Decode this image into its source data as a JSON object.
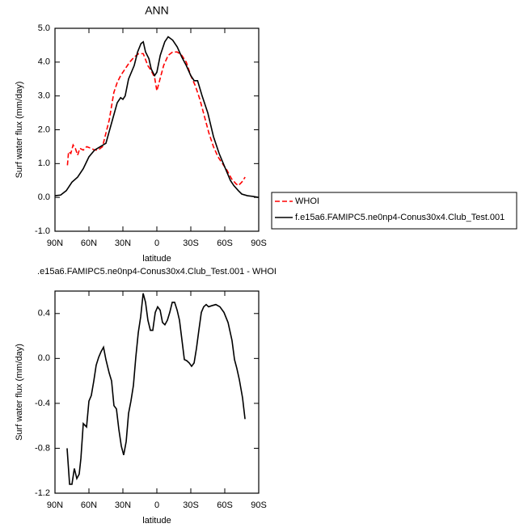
{
  "chart_data": [
    {
      "type": "line",
      "title": "ANN",
      "xlabel": "latitude",
      "ylabel": "Surf water flux (mm/day)",
      "xlim": [
        90,
        -90
      ],
      "ylim": [
        -1,
        5
      ],
      "xticks": [
        {
          "value": 90,
          "label": "90N"
        },
        {
          "value": 60,
          "label": "60N"
        },
        {
          "value": 30,
          "label": "30N"
        },
        {
          "value": 0,
          "label": "0"
        },
        {
          "value": -30,
          "label": "30S"
        },
        {
          "value": -60,
          "label": "60S"
        },
        {
          "value": -90,
          "label": "90S"
        }
      ],
      "yticks": [
        {
          "value": -1,
          "label": "-1.0"
        },
        {
          "value": 0,
          "label": "0.0"
        },
        {
          "value": 1,
          "label": "1.0"
        },
        {
          "value": 2,
          "label": "2.0"
        },
        {
          "value": 3,
          "label": "3.0"
        },
        {
          "value": 4,
          "label": "4.0"
        },
        {
          "value": 5,
          "label": "5.0"
        }
      ],
      "legend": "right",
      "series": [
        {
          "name": "WHOI",
          "color": "#ff0000",
          "style": "dashed",
          "x": [
            79,
            78,
            76,
            74,
            72,
            70,
            68,
            65,
            62,
            58,
            55,
            52,
            48,
            45,
            42,
            38,
            35,
            32,
            28,
            24,
            20,
            16,
            12,
            8,
            5,
            2,
            0,
            -2,
            -6,
            -10,
            -14,
            -18,
            -22,
            -26,
            -30,
            -34,
            -38,
            -42,
            -46,
            -50,
            -54,
            -58,
            -62,
            -66,
            -70,
            -72,
            -75,
            -78
          ],
          "values": [
            0.95,
            1.35,
            1.3,
            1.55,
            1.45,
            1.25,
            1.45,
            1.4,
            1.5,
            1.45,
            1.4,
            1.4,
            1.5,
            1.9,
            2.3,
            3.1,
            3.4,
            3.6,
            3.8,
            4.0,
            4.15,
            4.25,
            4.25,
            3.9,
            3.75,
            3.55,
            3.15,
            3.4,
            3.9,
            4.2,
            4.3,
            4.3,
            4.2,
            4.0,
            3.6,
            3.3,
            2.9,
            2.4,
            1.9,
            1.5,
            1.2,
            1.0,
            0.8,
            0.55,
            0.4,
            0.35,
            0.45,
            0.6
          ]
        },
        {
          "name": "f.e15a6.FAMIPC5.ne0np4-Conus30x4.Club_Test.001",
          "color": "#000000",
          "style": "solid",
          "x": [
            90,
            85,
            80,
            75,
            70,
            65,
            60,
            55,
            50,
            45,
            40,
            35,
            32,
            30,
            28,
            25,
            20,
            17,
            14,
            12,
            10,
            7,
            5,
            2,
            0,
            -3,
            -7,
            -10,
            -14,
            -18,
            -22,
            -26,
            -30,
            -33,
            -36,
            -40,
            -45,
            -50,
            -55,
            -60,
            -65,
            -68,
            -72,
            -75,
            -80,
            -85,
            -90
          ],
          "values": [
            0.05,
            0.07,
            0.2,
            0.45,
            0.6,
            0.85,
            1.2,
            1.4,
            1.5,
            1.6,
            2.2,
            2.8,
            2.95,
            2.9,
            3.0,
            3.5,
            3.9,
            4.3,
            4.55,
            4.6,
            4.3,
            4.1,
            3.8,
            3.6,
            3.7,
            4.2,
            4.6,
            4.75,
            4.65,
            4.45,
            4.15,
            3.9,
            3.6,
            3.45,
            3.45,
            3.0,
            2.5,
            1.8,
            1.3,
            0.9,
            0.5,
            0.35,
            0.2,
            0.1,
            0.05,
            0.03,
            0.0
          ]
        }
      ]
    },
    {
      "type": "line",
      "title": ".e15a6.FAMIPC5.ne0np4-Conus30x4.Club_Test.001 - WHOI",
      "xlabel": "latitude",
      "ylabel": "Surf water flux (mm/day)",
      "xlim": [
        90,
        -90
      ],
      "ylim": [
        -1.2,
        0.6
      ],
      "xticks": [
        {
          "value": 90,
          "label": "90N"
        },
        {
          "value": 60,
          "label": "60N"
        },
        {
          "value": 30,
          "label": "30N"
        },
        {
          "value": 0,
          "label": "0"
        },
        {
          "value": -30,
          "label": "30S"
        },
        {
          "value": -60,
          "label": "60S"
        },
        {
          "value": -90,
          "label": "90S"
        }
      ],
      "yticks": [
        {
          "value": -1.2,
          "label": "-1.2"
        },
        {
          "value": -0.8,
          "label": "-0.8"
        },
        {
          "value": -0.4,
          "label": "-0.4"
        },
        {
          "value": 0,
          "label": "0.0"
        },
        {
          "value": 0.4,
          "label": "0.4"
        }
      ],
      "color": "#000000",
      "x": [
        79.3,
        77.1,
        75,
        72.9,
        70.7,
        68.6,
        67.1,
        65,
        62.1,
        60,
        57.9,
        55.7,
        53.6,
        51.4,
        49.3,
        47.1,
        45,
        42.1,
        40,
        37.9,
        35.7,
        33.6,
        31.4,
        29.3,
        27.1,
        25,
        22.9,
        20.7,
        18.6,
        16.4,
        14.3,
        12.1,
        10,
        7.9,
        5.7,
        3.6,
        1.4,
        -0.7,
        -2.9,
        -5,
        -7.1,
        -9.3,
        -11.4,
        -13.6,
        -15.7,
        -17.9,
        -20,
        -22.1,
        -24.3,
        -26.4,
        -28.6,
        -30.7,
        -32.9,
        -35,
        -37.1,
        -39.3,
        -41.4,
        -43.6,
        -45.7,
        -48.6,
        -52.1,
        -55.7,
        -59.3,
        -62.9,
        -66.4,
        -68.6,
        -70.7,
        -72.9,
        -75.7,
        -77.9
      ],
      "values": [
        -0.8,
        -1.12,
        -1.12,
        -0.98,
        -1.07,
        -1.03,
        -0.89,
        -0.58,
        -0.61,
        -0.38,
        -0.33,
        -0.2,
        -0.06,
        0.01,
        0.06,
        0.1,
        -0.01,
        -0.13,
        -0.2,
        -0.42,
        -0.45,
        -0.63,
        -0.78,
        -0.86,
        -0.74,
        -0.49,
        -0.38,
        -0.24,
        0.01,
        0.23,
        0.37,
        0.58,
        0.5,
        0.34,
        0.25,
        0.25,
        0.41,
        0.46,
        0.43,
        0.32,
        0.3,
        0.34,
        0.41,
        0.5,
        0.5,
        0.43,
        0.34,
        0.17,
        -0.01,
        -0.02,
        -0.04,
        -0.07,
        -0.04,
        0.09,
        0.25,
        0.41,
        0.46,
        0.48,
        0.46,
        0.47,
        0.48,
        0.46,
        0.41,
        0.32,
        0.16,
        -0.01,
        -0.09,
        -0.19,
        -0.35,
        -0.54
      ]
    }
  ]
}
